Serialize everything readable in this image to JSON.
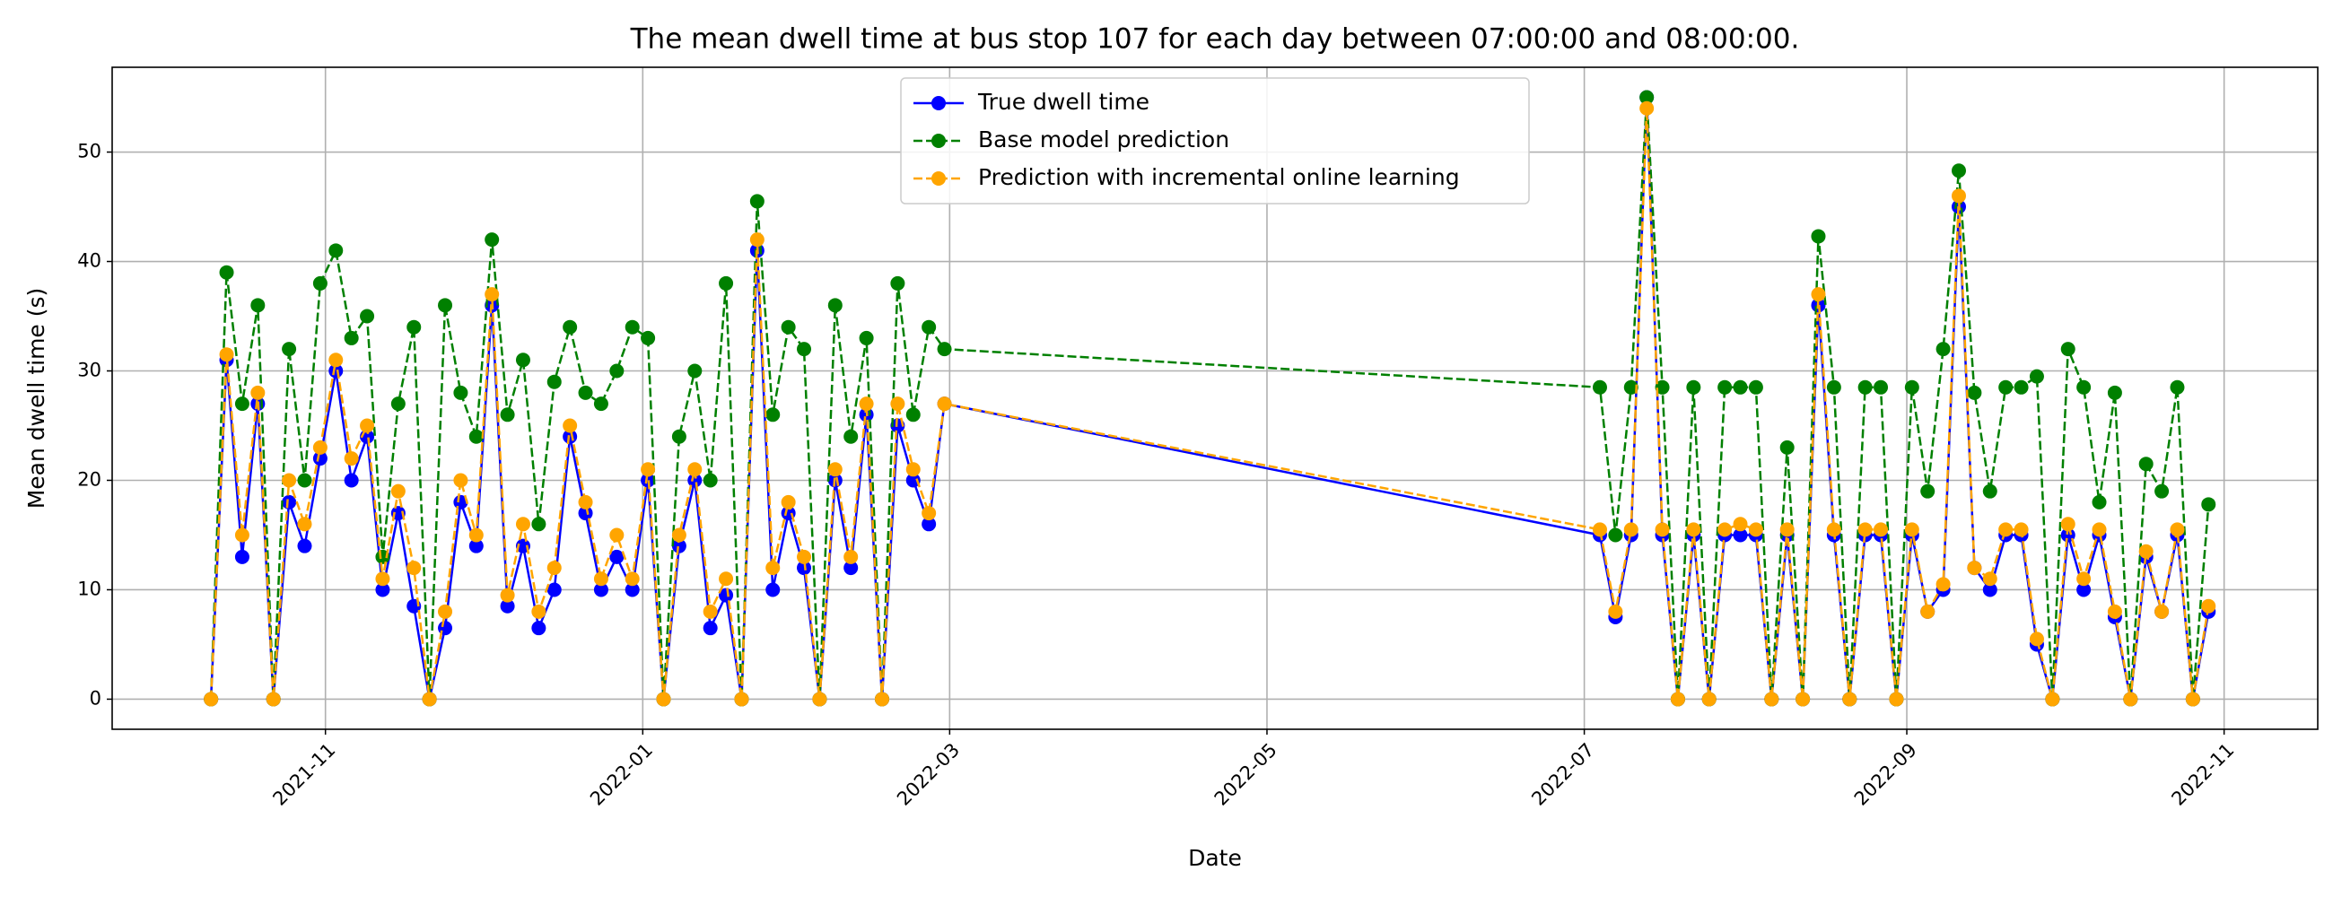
{
  "chart_data": {
    "type": "line",
    "title": "The mean dwell time at bus stop 107 for each day between 07:00:00 and 08:00:00.",
    "x_label": "Date",
    "y_label": "Mean dwell time (s)",
    "x": [
      18910,
      18913,
      18916,
      18919,
      18922,
      18925,
      18928,
      18931,
      18934,
      18937,
      18940,
      18943,
      18946,
      18949,
      18952,
      18955,
      18958,
      18961,
      18964,
      18967,
      18970,
      18973,
      18976,
      18979,
      18982,
      18985,
      18988,
      18991,
      18994,
      18997,
      19000,
      19003,
      19006,
      19009,
      19012,
      19015,
      19018,
      19021,
      19024,
      19027,
      19030,
      19033,
      19036,
      19039,
      19042,
      19045,
      19048,
      19051,
      19177,
      19180,
      19183,
      19186,
      19189,
      19192,
      19195,
      19198,
      19201,
      19204,
      19207,
      19210,
      19213,
      19216,
      19219,
      19222,
      19225,
      19228,
      19231,
      19234,
      19237,
      19240,
      19243,
      19246,
      19249,
      19252,
      19255,
      19258,
      19261,
      19264,
      19267,
      19270,
      19273,
      19276,
      19279,
      19282,
      19285,
      19288,
      19291,
      19294
    ],
    "series": [
      {
        "name": "True dwell time",
        "color": "#0000ff",
        "linestyle": "solid",
        "values": [
          0,
          31,
          13,
          27,
          0,
          18,
          14,
          22,
          30,
          20,
          24,
          10,
          17,
          8.5,
          0,
          6.5,
          18,
          14,
          36,
          8.5,
          14,
          6.5,
          10,
          24,
          17,
          10,
          13,
          10,
          20,
          0,
          14,
          20,
          6.5,
          9.5,
          0,
          41,
          10,
          17,
          12,
          0,
          20,
          12,
          26,
          0,
          25,
          20,
          16,
          27,
          15,
          7.5,
          15,
          55,
          15,
          0,
          15,
          0,
          15,
          15,
          15,
          0,
          15,
          0,
          36,
          15,
          0,
          15,
          15,
          0,
          15,
          8,
          10,
          45,
          12,
          10,
          15,
          15,
          5,
          0,
          15,
          10,
          15,
          7.5,
          0,
          13,
          8,
          15,
          0,
          8
        ]
      },
      {
        "name": "Base model prediction",
        "color": "#008000",
        "linestyle": "dashed",
        "values": [
          0,
          39,
          27,
          36,
          0,
          32,
          20,
          38,
          41,
          33,
          35,
          13,
          27,
          34,
          0,
          36,
          28,
          24,
          42,
          26,
          31,
          16,
          29,
          34,
          28,
          27,
          30,
          34,
          33,
          0,
          24,
          30,
          20,
          38,
          0,
          45.5,
          26,
          34,
          32,
          0,
          36,
          24,
          33,
          0,
          38,
          26,
          34,
          32,
          28.5,
          15,
          28.5,
          55,
          28.5,
          0,
          28.5,
          0,
          28.5,
          28.5,
          28.5,
          0,
          23,
          0,
          42.3,
          28.5,
          0,
          28.5,
          28.5,
          0,
          28.5,
          19,
          32,
          48.3,
          28,
          19,
          28.5,
          28.5,
          29.5,
          0,
          32,
          28.5,
          18,
          28,
          0,
          21.5,
          19,
          28.5,
          0,
          17.8
        ]
      },
      {
        "name": "Prediction with incremental online learning",
        "color": "#ffa500",
        "linestyle": "dashed",
        "values": [
          0,
          31.5,
          15,
          28,
          0,
          20,
          16,
          23,
          31,
          22,
          25,
          11,
          19,
          12,
          0,
          8,
          20,
          15,
          37,
          9.5,
          16,
          8,
          12,
          25,
          18,
          11,
          15,
          11,
          21,
          0,
          15,
          21,
          8,
          11,
          0,
          42,
          12,
          18,
          13,
          0,
          21,
          13,
          27,
          0,
          27,
          21,
          17,
          27,
          15.5,
          8,
          15.5,
          54,
          15.5,
          0,
          15.5,
          0,
          15.5,
          16,
          15.5,
          0,
          15.5,
          0,
          37,
          15.5,
          0,
          15.5,
          15.5,
          0,
          15.5,
          8,
          10.5,
          46,
          12,
          11,
          15.5,
          15.5,
          5.5,
          0,
          16,
          11,
          15.5,
          8,
          0,
          13.5,
          8,
          15.5,
          0,
          8.5
        ]
      }
    ],
    "xlim": [
      18891,
      19315
    ],
    "xticks": [
      {
        "value": 18932,
        "label": "2021-11"
      },
      {
        "value": 18993,
        "label": "2022-01"
      },
      {
        "value": 19052,
        "label": "2022-03"
      },
      {
        "value": 19113,
        "label": "2022-05"
      },
      {
        "value": 19174,
        "label": "2022-07"
      },
      {
        "value": 19236,
        "label": "2022-09"
      },
      {
        "value": 19297,
        "label": "2022-11"
      }
    ],
    "ylim": [
      -2.75,
      57.75
    ],
    "yticks": [
      0,
      10,
      20,
      30,
      40,
      50
    ],
    "grid": true,
    "legend": "upper center"
  }
}
